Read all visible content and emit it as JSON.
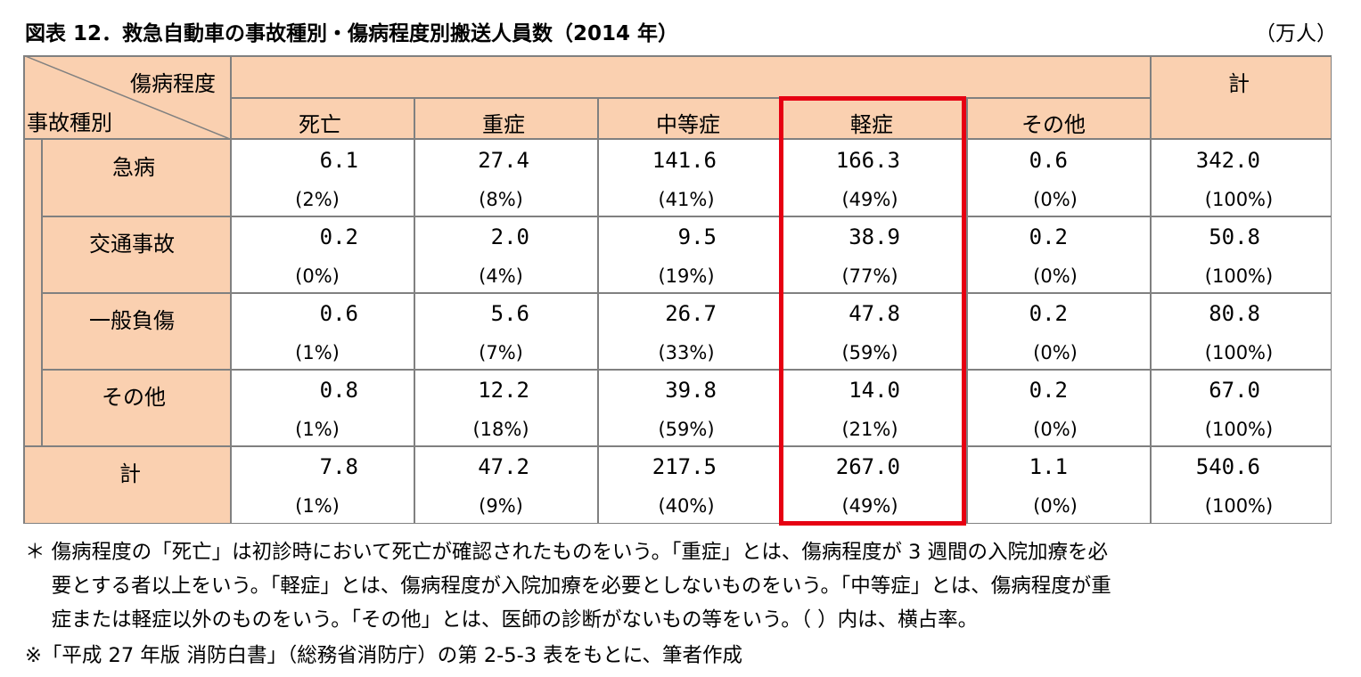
{
  "title": "図表 12．救急自動車の事故種別・傷病程度別搬送人員数（2014 年）",
  "unit": "（万人）",
  "header": {
    "severity_label": "傷病程度",
    "type_label": "事故種別",
    "total_label": "計",
    "columns": [
      "死亡",
      "重症",
      "中等症",
      "軽症",
      "その他"
    ]
  },
  "rows": [
    {
      "label": "急病",
      "values": [
        "6.1",
        "27.4",
        "141.6",
        "166.3",
        "0.6",
        "342.0"
      ],
      "shares": [
        "(2%)",
        "(8%)",
        "(41%)",
        "(49%)",
        "(0%)",
        "(100%)"
      ]
    },
    {
      "label": "交通事故",
      "values": [
        "0.2",
        "2.0",
        "9.5",
        "38.9",
        "0.2",
        "50.8"
      ],
      "shares": [
        "(0%)",
        "(4%)",
        "(19%)",
        "(77%)",
        "(0%)",
        "(100%)"
      ]
    },
    {
      "label": "一般負傷",
      "values": [
        "0.6",
        "5.6",
        "26.7",
        "47.8",
        "0.2",
        "80.8"
      ],
      "shares": [
        "(1%)",
        "(7%)",
        "(33%)",
        "(59%)",
        "(0%)",
        "(100%)"
      ]
    },
    {
      "label": "その他",
      "values": [
        "0.8",
        "12.2",
        "39.8",
        "14.0",
        "0.2",
        "67.0"
      ],
      "shares": [
        "(1%)",
        "(18%)",
        "(59%)",
        "(21%)",
        "(0%)",
        "(100%)"
      ]
    },
    {
      "label": "計",
      "values": [
        "7.8",
        "47.2",
        "217.5",
        "267.0",
        "1.1",
        "540.6"
      ],
      "shares": [
        "(1%)",
        "(9%)",
        "(40%)",
        "(49%)",
        "(0%)",
        "(100%)"
      ]
    }
  ],
  "notes": [
    "＊ 傷病程度の「死亡」は初診時において死亡が確認されたものをいう。「重症」とは、傷病程度が 3 週間の入院加療を必",
    "　 要とする者以上をいう。「軽症」とは、傷病程度が入院加療を必要としないものをいう。「中等症」とは、傷病程度が重",
    "　 症または軽症以外のものをいう。「その他」とは、医師の診断がないもの等をいう。（ ）内は、横占率。",
    "※「平成 27 年版 消防白書」（総務省消防庁）の第 2-5-3 表をもとに、筆者作成"
  ],
  "highlight_color": "#e60012"
}
